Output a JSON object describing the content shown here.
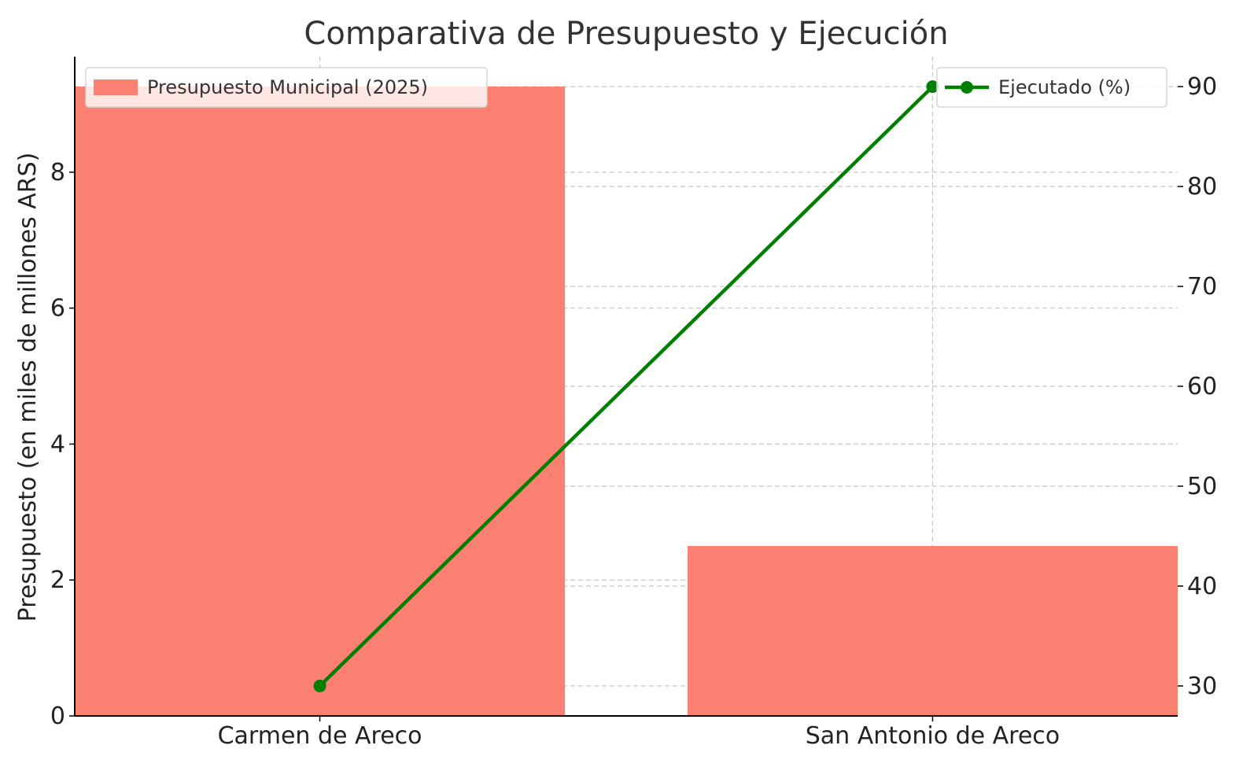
{
  "chart_data": {
    "type": "bar",
    "title": "Comparativa de Presupuesto y Ejecución",
    "categories": [
      "Carmen de Areco",
      "San Antonio de Areco"
    ],
    "xlabel": "",
    "ylabel": "Presupuesto (en miles de millones ARS)",
    "y2label": "",
    "ylim": [
      0,
      9.7
    ],
    "y2lim": [
      27,
      93
    ],
    "yticks": [
      0,
      2,
      4,
      6,
      8
    ],
    "y2ticks": [
      30,
      40,
      50,
      60,
      70,
      80,
      90
    ],
    "series": [
      {
        "name": "Presupuesto Municipal (2025)",
        "type": "bar",
        "axis": "left",
        "color": "#fa8072",
        "values": [
          9.26,
          2.5
        ]
      },
      {
        "name": "Ejecutado (%)",
        "type": "line",
        "axis": "right",
        "color": "#008000",
        "marker": "circle",
        "values": [
          30,
          90
        ]
      }
    ],
    "legend": [
      {
        "position": "top-left",
        "series": 0
      },
      {
        "position": "top-right",
        "series": 1
      }
    ],
    "grid": true
  }
}
